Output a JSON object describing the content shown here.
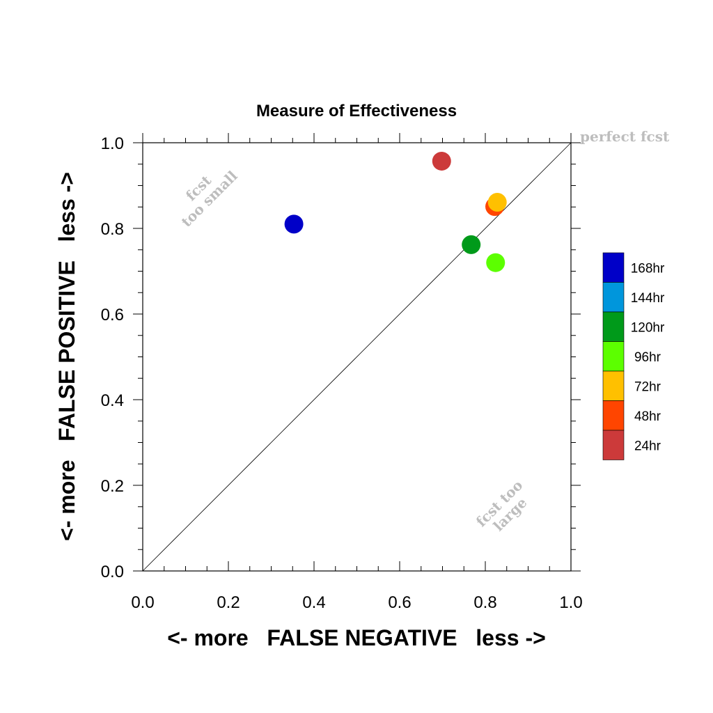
{
  "chart_data": {
    "type": "scatter",
    "title": "Measure of Effectiveness",
    "xlabel": "<- more   FALSE NEGATIVE   less ->",
    "ylabel": "<- more   FALSE POSITIVE   less ->",
    "xlim": [
      0.0,
      1.0
    ],
    "ylim": [
      0.0,
      1.0
    ],
    "xticks": [
      "0.0",
      "0.2",
      "0.4",
      "0.6",
      "0.8",
      "1.0"
    ],
    "yticks": [
      "0.0",
      "0.2",
      "0.4",
      "0.6",
      "0.8",
      "1.0"
    ],
    "diagonal": true,
    "annotations": {
      "perfect": "perfect fcst",
      "small_line1": "fcst",
      "small_line2": "too small",
      "large_line1": "fcst too",
      "large_line2": "large"
    },
    "points": [
      {
        "label": "168hr",
        "x": 0.353,
        "y": 0.81,
        "color": "#0000c8"
      },
      {
        "label": "24hr",
        "x": 0.698,
        "y": 0.957,
        "color": "#cc3a3a"
      },
      {
        "label": "48hr",
        "x": 0.822,
        "y": 0.851,
        "color": "#ff4500"
      },
      {
        "label": "72hr",
        "x": 0.828,
        "y": 0.861,
        "color": "#ffc000"
      },
      {
        "label": "120hr",
        "x": 0.767,
        "y": 0.762,
        "color": "#009a1a"
      },
      {
        "label": "96hr",
        "x": 0.824,
        "y": 0.72,
        "color": "#5cff00"
      }
    ],
    "legend": {
      "placement": "right",
      "entries": [
        {
          "label": "168hr",
          "color": "#0000c8"
        },
        {
          "label": "144hr",
          "color": "#0096dc"
        },
        {
          "label": "120hr",
          "color": "#009a1a"
        },
        {
          "label": "96hr",
          "color": "#5cff00"
        },
        {
          "label": "72hr",
          "color": "#ffc000"
        },
        {
          "label": "48hr",
          "color": "#ff4500"
        },
        {
          "label": "24hr",
          "color": "#cc3a3a"
        }
      ]
    }
  }
}
